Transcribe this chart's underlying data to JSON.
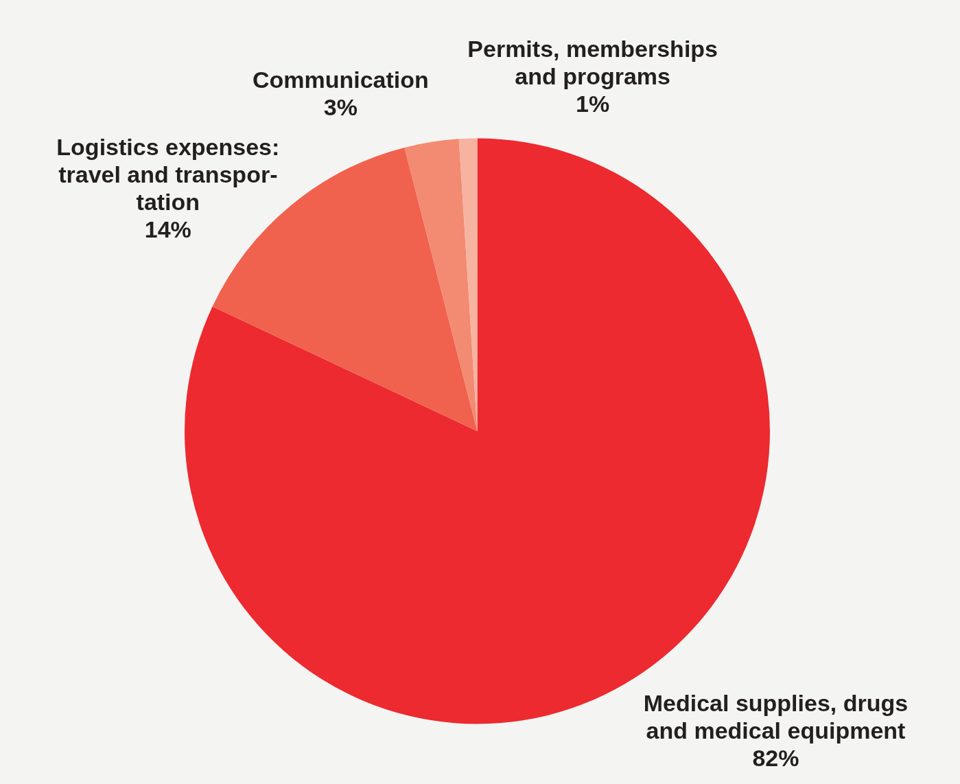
{
  "chart_data": {
    "type": "pie",
    "categories": [
      "Medical supplies, drugs\nand medical equipment",
      "Logistics expenses:\ntravel and transpor-\ntation",
      "Communication",
      "Permits, memberships\nand programs"
    ],
    "values": [
      82,
      14,
      3,
      1
    ],
    "colors": [
      "#ec2a2f",
      "#f0624e",
      "#f38a72",
      "#f6b3a0"
    ],
    "value_labels": [
      "82%",
      "14%",
      "3%",
      "1%"
    ],
    "legend": false
  }
}
